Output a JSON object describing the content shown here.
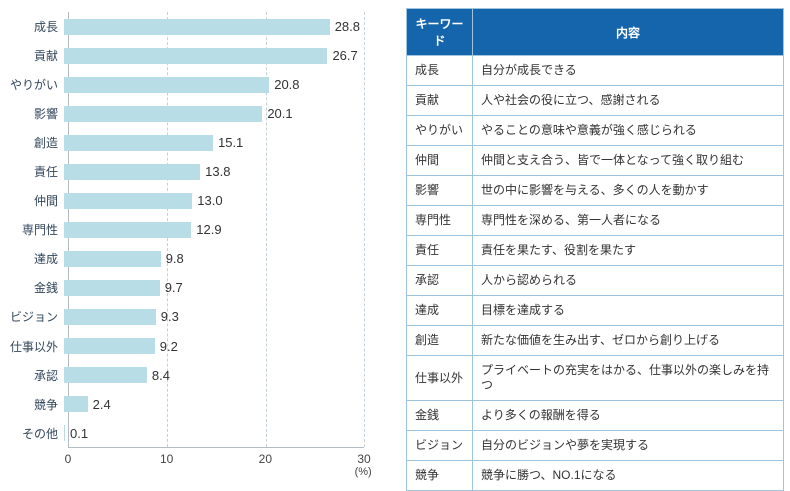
{
  "chart_data": {
    "type": "bar",
    "orientation": "horizontal",
    "title": "",
    "categories": [
      "成長",
      "貢献",
      "やりがい",
      "影響",
      "創造",
      "責任",
      "仲間",
      "専門性",
      "達成",
      "金銭",
      "ビジョン",
      "仕事以外",
      "承認",
      "競争",
      "その他"
    ],
    "values": [
      28.8,
      26.7,
      20.8,
      20.1,
      15.1,
      13.8,
      13.0,
      12.9,
      9.8,
      9.7,
      9.3,
      9.2,
      8.4,
      2.4,
      0.1
    ],
    "xlabel": "(%)",
    "xlim": [
      0,
      30
    ],
    "xticks": [
      0,
      10,
      20,
      30
    ],
    "grid": "dashed-vertical",
    "legend": "none",
    "bar_color": "#b8dde6"
  },
  "table": {
    "headers": [
      "キーワード",
      "内容"
    ],
    "rows": [
      {
        "keyword": "成長",
        "description": "自分が成長できる"
      },
      {
        "keyword": "貢献",
        "description": "人や社会の役に立つ、感謝される"
      },
      {
        "keyword": "やりがい",
        "description": "やることの意味や意義が強く感じられる"
      },
      {
        "keyword": "仲間",
        "description": "仲間と支え合う、皆で一体となって強く取り組む"
      },
      {
        "keyword": "影響",
        "description": "世の中に影響を与える、多くの人を動かす"
      },
      {
        "keyword": "専門性",
        "description": "専門性を深める、第一人者になる"
      },
      {
        "keyword": "責任",
        "description": "責任を果たす、役割を果たす"
      },
      {
        "keyword": "承認",
        "description": "人から認められる"
      },
      {
        "keyword": "達成",
        "description": "目標を達成する"
      },
      {
        "keyword": "創造",
        "description": "新たな価値を生み出す、ゼロから創り上げる"
      },
      {
        "keyword": "仕事以外",
        "description": "プライベートの充実をはかる、仕事以外の楽しみを持つ"
      },
      {
        "keyword": "金銭",
        "description": "より多くの報酬を得る"
      },
      {
        "keyword": "ビジョン",
        "description": "自分のビジョンや夢を実現する"
      },
      {
        "keyword": "競争",
        "description": "競争に勝つ、NO.1になる"
      }
    ],
    "colors": {
      "header_bg": "#1565ac",
      "header_text": "#ffffff",
      "border": "#9fc4de"
    }
  }
}
